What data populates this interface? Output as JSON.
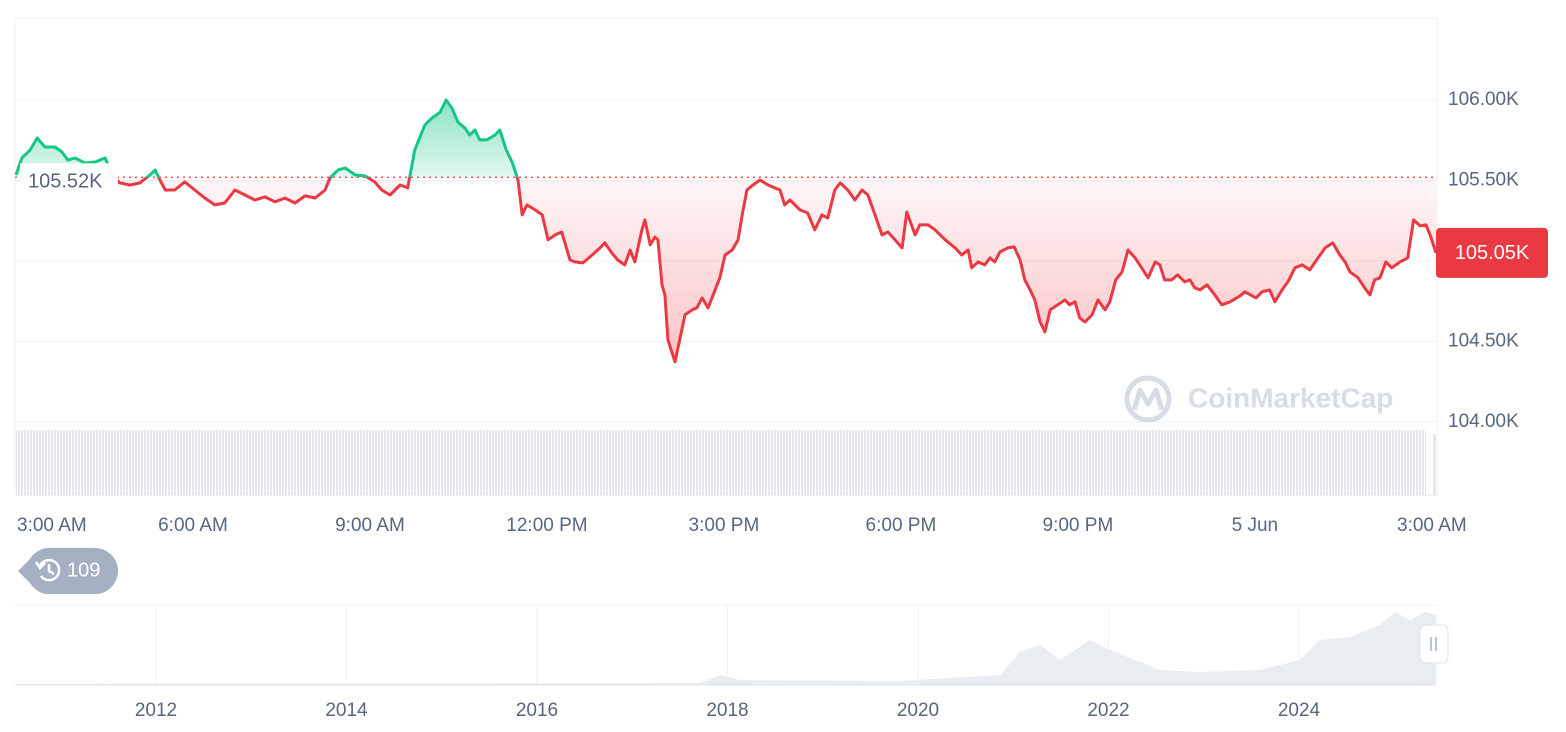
{
  "chart_data": {
    "type": "line",
    "x": [
      0.0,
      0.1,
      0.24,
      0.36,
      0.49,
      0.66,
      0.78,
      0.88,
      1.0,
      1.17,
      1.34,
      1.51,
      1.63,
      1.76,
      1.93,
      2.1,
      2.27,
      2.36,
      2.44,
      2.53,
      2.69,
      2.86,
      3.03,
      3.2,
      3.37,
      3.54,
      3.71,
      3.88,
      4.05,
      4.22,
      4.39,
      4.56,
      4.73,
      4.9,
      5.07,
      5.24,
      5.32,
      5.46,
      5.58,
      5.75,
      5.92,
      6.08,
      6.2,
      6.34,
      6.51,
      6.64,
      6.76,
      6.93,
      7.05,
      7.19,
      7.29,
      7.39,
      7.49,
      7.61,
      7.69,
      7.78,
      7.86,
      7.98,
      8.12,
      8.2,
      8.31,
      8.41,
      8.51,
      8.58,
      8.66,
      8.8,
      8.92,
      9.02,
      9.14,
      9.25,
      9.39,
      9.47,
      9.61,
      9.73,
      9.9,
      9.98,
      10.1,
      10.2,
      10.32,
      10.41,
      10.49,
      10.61,
      10.66,
      10.75,
      10.83,
      10.88,
      10.95,
      11.0,
      11.05,
      11.17,
      11.25,
      11.34,
      11.46,
      11.54,
      11.63,
      11.73,
      11.85,
      11.93,
      12.02,
      12.14,
      12.24,
      12.31,
      12.39,
      12.47,
      12.61,
      12.75,
      12.86,
      12.95,
      13.03,
      13.12,
      13.29,
      13.42,
      13.54,
      13.66,
      13.76,
      13.88,
      13.97,
      14.1,
      14.22,
      14.34,
      14.44,
      14.56,
      14.68,
      14.78,
      14.9,
      15.02,
      15.1,
      15.24,
      15.32,
      15.46,
      15.58,
      15.75,
      15.92,
      16.03,
      16.14,
      16.2,
      16.31,
      16.42,
      16.51,
      16.59,
      16.68,
      16.81,
      16.92,
      17.02,
      17.1,
      17.19,
      17.27,
      17.36,
      17.44,
      17.53,
      17.66,
      17.78,
      17.86,
      17.95,
      18.03,
      18.12,
      18.24,
      18.34,
      18.46,
      18.54,
      18.64,
      18.75,
      18.85,
      18.97,
      19.08,
      19.19,
      19.31,
      19.39,
      19.47,
      19.59,
      19.69,
      19.81,
      19.9,
      19.98,
      20.07,
      20.19,
      20.32,
      20.44,
      20.58,
      20.75,
      20.83,
      21.02,
      21.12,
      21.25,
      21.34,
      21.46,
      21.56,
      21.68,
      21.8,
      21.93,
      22.07,
      22.19,
      22.32,
      22.44,
      22.53,
      22.61,
      22.75,
      22.86,
      22.95,
      23.03,
      23.12,
      23.22,
      23.32,
      23.46,
      23.59,
      23.69,
      23.8,
      23.9,
      23.97,
      24.07
    ],
    "values": [
      105534,
      105640,
      105690,
      105764,
      105708,
      105708,
      105677,
      105627,
      105640,
      105609,
      105615,
      105640,
      105534,
      105485,
      105472,
      105485,
      105534,
      105565,
      105503,
      105441,
      105441,
      105491,
      105441,
      105391,
      105348,
      105360,
      105441,
      105410,
      105379,
      105398,
      105367,
      105391,
      105360,
      105404,
      105391,
      105441,
      105516,
      105565,
      105578,
      105534,
      105528,
      105491,
      105441,
      105410,
      105472,
      105454,
      105690,
      105845,
      105888,
      105925,
      106000,
      105950,
      105863,
      105826,
      105783,
      105814,
      105752,
      105752,
      105783,
      105814,
      105690,
      105615,
      105503,
      105286,
      105348,
      105317,
      105286,
      105131,
      105162,
      105180,
      105006,
      104994,
      104988,
      105025,
      105081,
      105112,
      105050,
      105006,
      104975,
      105068,
      104994,
      105193,
      105255,
      105100,
      105149,
      105131,
      104851,
      104789,
      104510,
      104373,
      104510,
      104665,
      104696,
      104708,
      104770,
      104708,
      104820,
      104895,
      105037,
      105068,
      105131,
      105286,
      105441,
      105466,
      105503,
      105472,
      105454,
      105441,
      105348,
      105379,
      105317,
      105298,
      105193,
      105286,
      105267,
      105441,
      105485,
      105441,
      105379,
      105441,
      105410,
      105286,
      105162,
      105180,
      105131,
      105081,
      105304,
      105162,
      105224,
      105224,
      105193,
      105131,
      105081,
      105037,
      105068,
      104957,
      104994,
      104975,
      105019,
      104994,
      105056,
      105081,
      105087,
      105006,
      104882,
      104820,
      104758,
      104621,
      104559,
      104696,
      104727,
      104758,
      104727,
      104746,
      104646,
      104621,
      104665,
      104758,
      104696,
      104746,
      104882,
      104932,
      105068,
      105019,
      104957,
      104895,
      104994,
      104975,
      104882,
      104882,
      104913,
      104870,
      104882,
      104833,
      104820,
      104851,
      104789,
      104727,
      104746,
      104783,
      104808,
      104770,
      104808,
      104820,
      104746,
      104820,
      104870,
      104957,
      104975,
      104944,
      105019,
      105081,
      105112,
      105037,
      104994,
      104932,
      104895,
      104833,
      104789,
      104882,
      104895,
      104994,
      104957,
      104994,
      105019,
      105255,
      105218,
      105224,
      105162,
      105050
    ],
    "xlim": [
      0,
      24.07
    ],
    "xticks": [
      {
        "value": 0,
        "label": "3:00 AM"
      },
      {
        "value": 3,
        "label": "6:00 AM"
      },
      {
        "value": 6,
        "label": "9:00 AM"
      },
      {
        "value": 9,
        "label": "12:00 PM"
      },
      {
        "value": 12,
        "label": "3:00 PM"
      },
      {
        "value": 15,
        "label": "6:00 PM"
      },
      {
        "value": 18,
        "label": "9:00 PM"
      },
      {
        "value": 21,
        "label": "5 Jun"
      },
      {
        "value": 24,
        "label": "3:00 AM"
      }
    ],
    "ylim": [
      103545,
      106510
    ],
    "yticks": [
      {
        "value": 106000,
        "label": "106.00K"
      },
      {
        "value": 105500,
        "label": "105.50K"
      },
      {
        "value": 105000,
        "label": null
      },
      {
        "value": 104500,
        "label": "104.50K"
      },
      {
        "value": 104000,
        "label": "104.00K"
      }
    ],
    "grid": true,
    "up_color": "#16c784",
    "down_color": "#ea3943",
    "baseline": {
      "value": 105520,
      "label": "105.52K"
    },
    "last_price": {
      "value": 105050,
      "label": "105.05K"
    },
    "watermark": "CoinMarketCap"
  },
  "history_badge": 109,
  "navigator": {
    "xticks": [
      2012,
      2014,
      2016,
      2018,
      2020,
      2022,
      2024
    ]
  }
}
